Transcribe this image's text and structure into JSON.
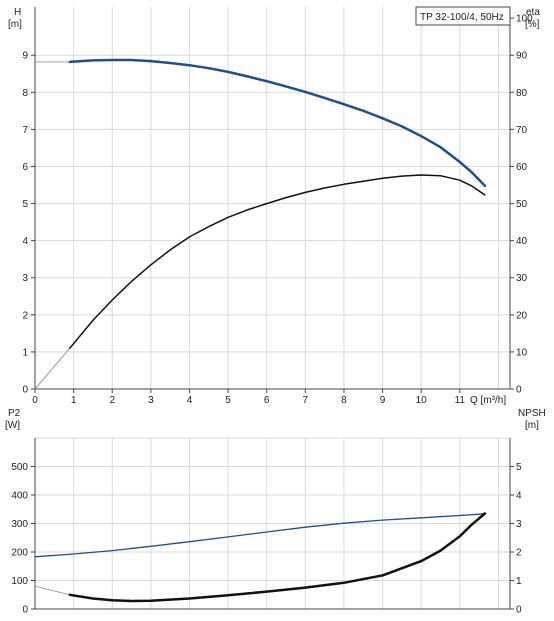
{
  "chart_data": [
    {
      "type": "line",
      "title": "TP 32-100/4, 50Hz",
      "xlabel": "Q [m³/h]",
      "x_ticks": [
        "0",
        "1",
        "2",
        "3",
        "4",
        "5",
        "6",
        "7",
        "8",
        "9",
        "10",
        "11"
      ],
      "xlim": [
        0,
        12.3
      ],
      "left_axis": {
        "label": "H",
        "unit": "[m]",
        "ticks": [
          "0",
          "1",
          "2",
          "3",
          "4",
          "5",
          "6",
          "7",
          "8",
          "9"
        ],
        "ylim": [
          0,
          10.3
        ]
      },
      "right_axis": {
        "label": "eta",
        "unit": "[%]",
        "ticks": [
          "0",
          "10",
          "20",
          "30",
          "40",
          "50",
          "60",
          "70",
          "80",
          "90",
          "100"
        ],
        "ylim": [
          0,
          103
        ]
      },
      "grid": true,
      "series": [
        {
          "axis": "left",
          "color": "#1f4e8c",
          "width": 2.5,
          "x": [
            0.9,
            1.5,
            2,
            2.5,
            3,
            3.5,
            4,
            4.5,
            5,
            5.5,
            6,
            6.5,
            7,
            7.5,
            8,
            8.5,
            9,
            9.5,
            10,
            10.5,
            11,
            11.3,
            11.65
          ],
          "y": [
            8.82,
            8.86,
            8.87,
            8.87,
            8.84,
            8.79,
            8.73,
            8.65,
            8.55,
            8.43,
            8.3,
            8.16,
            8.01,
            7.85,
            7.68,
            7.5,
            7.3,
            7.08,
            6.82,
            6.52,
            6.12,
            5.85,
            5.48
          ]
        },
        {
          "axis": "right",
          "color": "#111111",
          "width": 1.5,
          "x": [
            0.9,
            1.5,
            2,
            2.5,
            3,
            3.5,
            4,
            4.5,
            5,
            5.5,
            6,
            6.5,
            7,
            7.5,
            8,
            8.5,
            9,
            9.5,
            10,
            10.5,
            11,
            11.3,
            11.65
          ],
          "y": [
            11,
            18.5,
            24,
            29,
            33.5,
            37.5,
            41,
            43.8,
            46.3,
            48.3,
            50,
            51.6,
            53,
            54.2,
            55.2,
            56,
            56.8,
            57.4,
            57.7,
            57.5,
            56.3,
            54.8,
            52.3
          ]
        }
      ],
      "extrapolation": [
        {
          "axis": "left",
          "color": "#9aa7bd",
          "x": [
            0,
            0.9
          ],
          "y": [
            8.82,
            8.82
          ]
        },
        {
          "axis": "right",
          "color": "#999999",
          "x": [
            0,
            0.9
          ],
          "y": [
            0,
            11
          ]
        }
      ]
    },
    {
      "type": "line",
      "x_ticks": [],
      "xlim": [
        0,
        12.3
      ],
      "left_axis": {
        "label": "P2",
        "unit": "[W]",
        "ticks": [
          "0",
          "100",
          "200",
          "300",
          "400",
          "500"
        ],
        "ylim": [
          0,
          600
        ]
      },
      "right_axis": {
        "label": "NPSH",
        "unit": "[m]",
        "ticks": [
          "0",
          "1",
          "2",
          "3",
          "4",
          "5"
        ],
        "ylim": [
          0,
          6
        ]
      },
      "grid": true,
      "series": [
        {
          "axis": "left",
          "color": "#1f4e8c",
          "width": 1.3,
          "x": [
            0,
            1,
            2,
            3,
            4,
            5,
            6,
            7,
            8,
            9,
            10,
            11,
            11.65
          ],
          "y": [
            183,
            193,
            205,
            220,
            236,
            253,
            270,
            287,
            301,
            312,
            320,
            328,
            334
          ]
        },
        {
          "axis": "right",
          "color": "#111111",
          "width": 2.5,
          "x": [
            0.9,
            1.5,
            2,
            2.5,
            3,
            4,
            5,
            6,
            7,
            8,
            9,
            10,
            10.5,
            11,
            11.3,
            11.65
          ],
          "y": [
            0.5,
            0.37,
            0.31,
            0.28,
            0.29,
            0.37,
            0.48,
            0.61,
            0.75,
            0.92,
            1.18,
            1.68,
            2.05,
            2.55,
            2.95,
            3.35
          ]
        }
      ],
      "extrapolation": [
        {
          "axis": "right",
          "color": "#999999",
          "x": [
            0,
            0.9
          ],
          "y": [
            0.8,
            0.5
          ]
        }
      ]
    }
  ]
}
